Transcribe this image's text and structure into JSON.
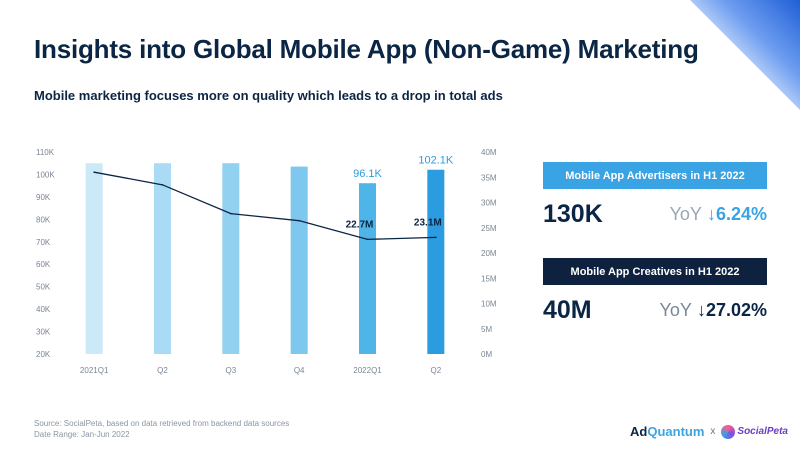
{
  "title": "Insights into Global Mobile App (Non-Game) Marketing",
  "subtitle": "Mobile marketing focuses more on quality which leads to a drop in total ads",
  "chart_data": {
    "type": "bar",
    "categories": [
      "2021Q1",
      "Q2",
      "Q3",
      "Q4",
      "2022Q1",
      "Q2"
    ],
    "series": [
      {
        "name": "",
        "type": "bar",
        "axis": "left",
        "values": [
          105000,
          105000,
          105000,
          103500,
          96100,
          102100
        ]
      },
      {
        "name": "",
        "type": "line",
        "axis": "right",
        "values": [
          36000,
          33500,
          27800,
          26400,
          22700,
          23100
        ]
      }
    ],
    "bar_labels": [
      "",
      "",
      "",
      "",
      "96.1K",
      "102.1K"
    ],
    "line_labels": [
      "",
      "",
      "",
      "",
      "22.7M",
      "23.1M"
    ],
    "y_left": {
      "min": 20000,
      "max": 110000,
      "ticks": [
        "20K",
        "30K",
        "40K",
        "50K",
        "60K",
        "70K",
        "80K",
        "90K",
        "100K",
        "110K"
      ]
    },
    "y_right": {
      "min": 0,
      "max": 40000,
      "ticks": [
        "0M",
        "5M",
        "10M",
        "15M",
        "20M",
        "25M",
        "30M",
        "35M",
        "40M"
      ]
    },
    "bar_colors": [
      "#cce9f7",
      "#a9dcf4",
      "#93d1f1",
      "#7ec7ee",
      "#4fb5e8",
      "#2c9ce0"
    ],
    "line_color": "#0b2545",
    "grid": false
  },
  "kpis": [
    {
      "label": "Mobile App Advertisers in H1 2022",
      "value": "130K",
      "yoy_label": "YoY",
      "yoy_value": "↓6.24%"
    },
    {
      "label": "Mobile App Creatives in H1 2022",
      "value": "40M",
      "yoy_label": "YoY",
      "yoy_value": "↓27.02%"
    }
  ],
  "footer": {
    "source": "Source: SocialPeta, based on data retrieved from backend data sources",
    "date_range": "Date Range: Jan-Jun 2022"
  },
  "logos": {
    "brand1_a": "Ad",
    "brand1_b": "Quantum",
    "separator": "x",
    "brand2": "SocialPeta"
  }
}
